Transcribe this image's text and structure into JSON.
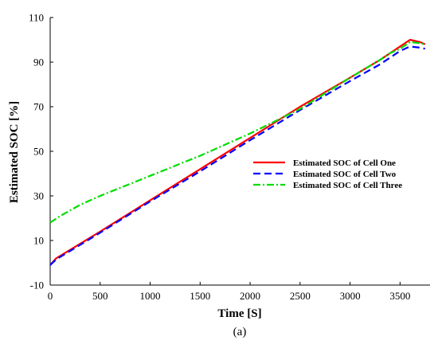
{
  "chart_data": {
    "type": "line",
    "title": "",
    "xlabel": "Time [S]",
    "ylabel": "Estimated SOC [%]",
    "caption": "(a)",
    "xlim": [
      0,
      3800
    ],
    "ylim": [
      -10,
      110
    ],
    "xticks": [
      0,
      500,
      1000,
      1500,
      2000,
      2500,
      3000,
      3500
    ],
    "yticks": [
      -10,
      10,
      30,
      50,
      70,
      90,
      110
    ],
    "grid": false,
    "legend_position": "right",
    "series": [
      {
        "name": "Estimated SOC of Cell One",
        "color": "#ff0000",
        "style": "solid",
        "x": [
          0,
          60,
          500,
          1000,
          1500,
          2000,
          2500,
          3000,
          3300,
          3400,
          3500,
          3600,
          3700,
          3750
        ],
        "y": [
          -1,
          2,
          14,
          28,
          42,
          56,
          70,
          83,
          91,
          94,
          97,
          100,
          99,
          98
        ]
      },
      {
        "name": "Estimated SOC of Cell Two",
        "color": "#0000ff",
        "style": "dashed",
        "x": [
          0,
          60,
          500,
          1000,
          1500,
          2000,
          2500,
          3000,
          3300,
          3400,
          3500,
          3600,
          3700,
          3750
        ],
        "y": [
          -1,
          1.5,
          13.5,
          27.5,
          41,
          55,
          68.5,
          81.5,
          89,
          92,
          95,
          97,
          96.5,
          96
        ]
      },
      {
        "name": "Estimated SOC of Cell Three",
        "color": "#00dd00",
        "style": "dashdot",
        "x": [
          0,
          100,
          300,
          500,
          1000,
          1500,
          2000,
          2500,
          3000,
          3300,
          3400,
          3500,
          3600,
          3700,
          3750
        ],
        "y": [
          18,
          21,
          26,
          30,
          39,
          48,
          58,
          69,
          83,
          91,
          94,
          96,
          99,
          98.5,
          98
        ]
      }
    ]
  }
}
